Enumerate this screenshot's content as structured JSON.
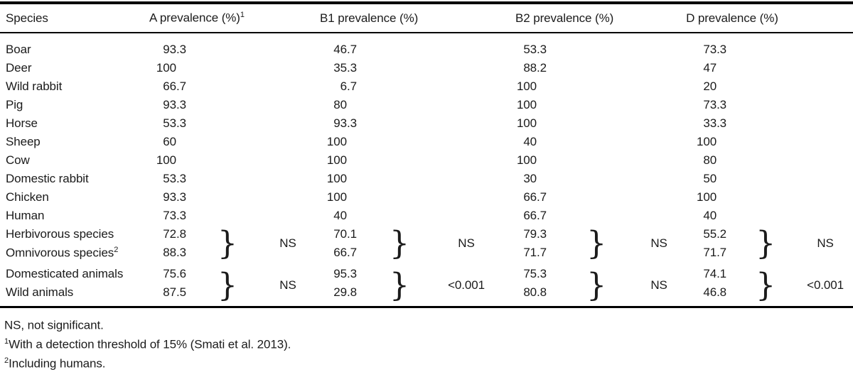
{
  "colors": {
    "text": "#1b1b1b",
    "rule": "#000000",
    "background": "#ffffff"
  },
  "table": {
    "header": {
      "species": "Species",
      "a": "A prevalence (%)",
      "a_sup": "1",
      "b1": "B1 prevalence (%)",
      "b2": "B2 prevalence (%)",
      "d": "D prevalence (%)"
    },
    "brace_glyph": "}",
    "rows": [
      {
        "species": "Boar",
        "a": "93.3",
        "b1": "46.7",
        "b2": "53.3",
        "d": "73.3"
      },
      {
        "species": "Deer",
        "a": "100",
        "b1": "35.3",
        "b2": "88.2",
        "d": "47"
      },
      {
        "species": "Wild rabbit",
        "a": "66.7",
        "b1": "6.7",
        "b2": "100",
        "d": "20"
      },
      {
        "species": "Pig",
        "a": "93.3",
        "b1": "80",
        "b2": "100",
        "d": "73.3"
      },
      {
        "species": "Horse",
        "a": "53.3",
        "b1": "93.3",
        "b2": "100",
        "d": "33.3"
      },
      {
        "species": "Sheep",
        "a": "60",
        "b1": "100",
        "b2": "40",
        "d": "100"
      },
      {
        "species": "Cow",
        "a": "100",
        "b1": "100",
        "b2": "100",
        "d": "80"
      },
      {
        "species": "Domestic rabbit",
        "a": "53.3",
        "b1": "100",
        "b2": "30",
        "d": "50"
      },
      {
        "species": "Chicken",
        "a": "93.3",
        "b1": "100",
        "b2": "66.7",
        "d": "100"
      },
      {
        "species": "Human",
        "a": "73.3",
        "b1": "40",
        "b2": "66.7",
        "d": "40"
      }
    ],
    "groups": [
      {
        "rows": [
          {
            "species": "Herbivorous species",
            "a": "72.8",
            "b1": "70.1",
            "b2": "79.3",
            "d": "55.2"
          },
          {
            "species": "Omnivorous species",
            "sup": "2",
            "a": "88.3",
            "b1": "66.7",
            "b2": "71.7",
            "d": "71.7"
          }
        ],
        "sig": {
          "a": "NS",
          "b1": "NS",
          "b2": "NS",
          "d": "NS"
        }
      },
      {
        "rows": [
          {
            "species": "Domesticated animals",
            "a": "75.6",
            "b1": "95.3",
            "b2": "75.3",
            "d": "74.1"
          },
          {
            "species": "Wild animals",
            "a": "87.5",
            "b1": "29.8",
            "b2": "80.8",
            "d": "46.8"
          }
        ],
        "sig": {
          "a": "NS",
          "b1": "<0.001",
          "b2": "NS",
          "d": "<0.001"
        }
      }
    ],
    "footnotes": [
      {
        "sup": "",
        "text": "NS, not significant."
      },
      {
        "sup": "1",
        "text": "With a detection threshold of 15% (Smati et al. 2013)."
      },
      {
        "sup": "2",
        "text": "Including humans."
      }
    ]
  }
}
